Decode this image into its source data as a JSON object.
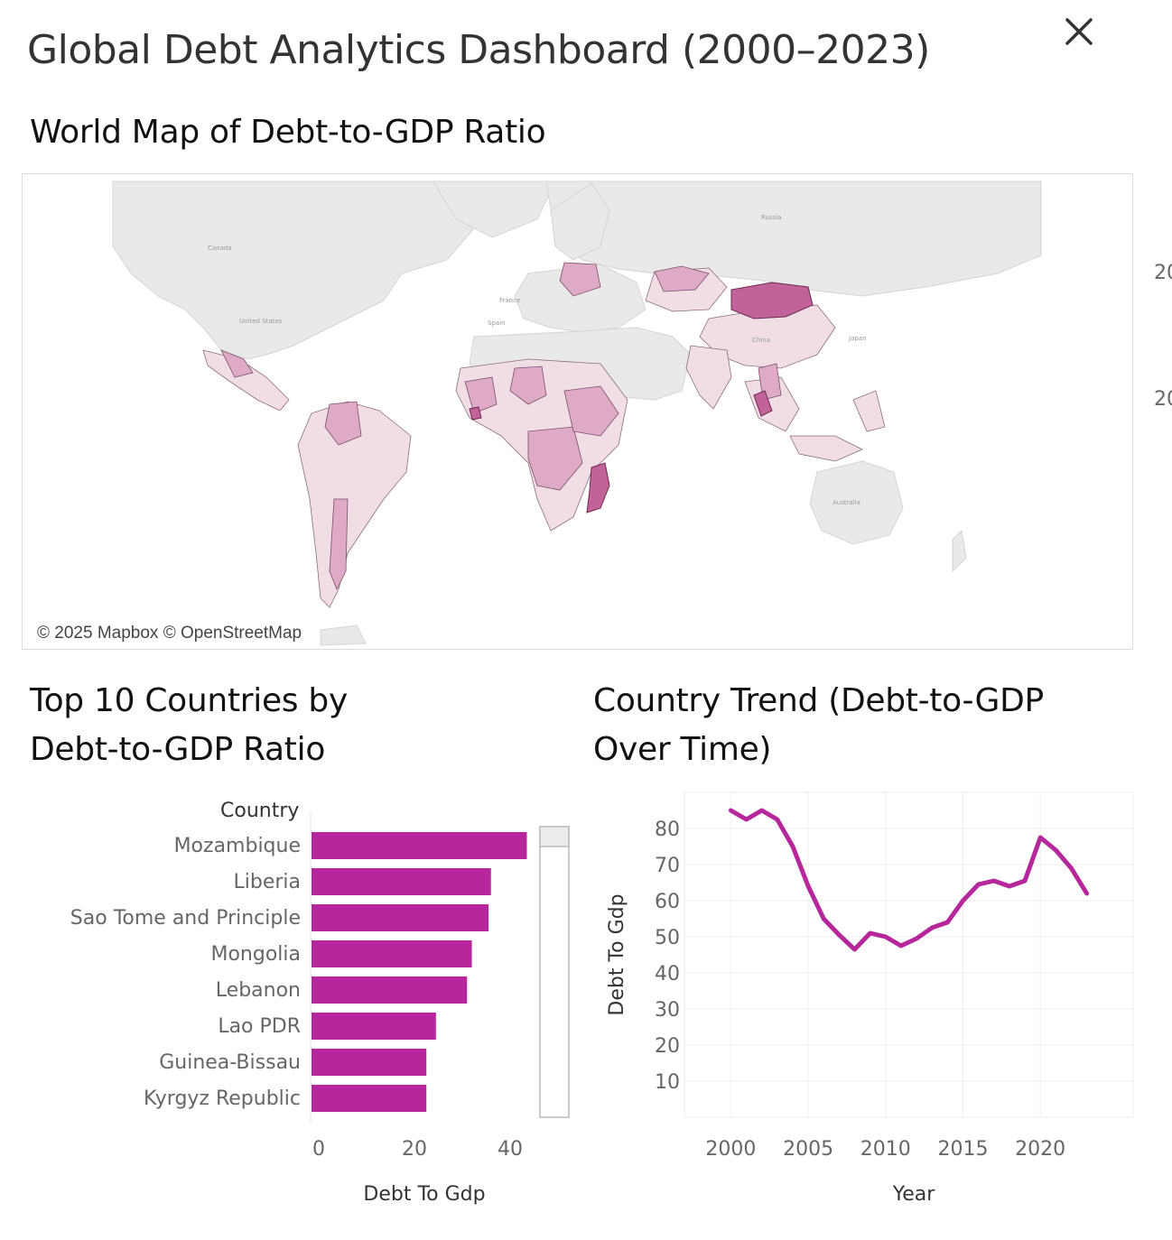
{
  "dashboard": {
    "title": "Global Debt Analytics Dashboard (2000–2023)",
    "close_icon": "close-icon"
  },
  "map": {
    "title": "World Map of Debt-to-GDP Ratio",
    "attribution": "© 2025 Mapbox © OpenStreetMap",
    "place_labels": [
      "Russia",
      "Canada",
      "United States",
      "France",
      "Spain",
      "China",
      "Japan",
      "Australia"
    ],
    "legend_partial": [
      "20",
      "20"
    ],
    "highlight_color": "#c2629a",
    "land_color": "#e8e8e8"
  },
  "bar_chart": {
    "title_line1": "Top 10 Countries by",
    "title_line2": "Debt-to-GDP Ratio",
    "column_header": "Country",
    "bar_color": "#b5279b"
  },
  "line_chart": {
    "title_line1": "Country Trend (Debt-to-GDP",
    "title_line2": "Over Time)",
    "line_color": "#b5279b"
  },
  "chart_data": [
    {
      "type": "bar",
      "orientation": "horizontal",
      "title": "Top 10 Countries by Debt-to-GDP Ratio",
      "ylabel": "Country",
      "xlabel": "Debt To Gdp",
      "categories": [
        "Mozambique",
        "Liberia",
        "Sao Tome and Principle",
        "Mongolia",
        "Lebanon",
        "Lao PDR",
        "Guinea-Bissau",
        "Kyrgyz Republic"
      ],
      "values": [
        45,
        37.5,
        37,
        33.5,
        32.5,
        26,
        24,
        24
      ],
      "xticks": [
        "0",
        "20",
        "40"
      ],
      "xlim": [
        0,
        55
      ]
    },
    {
      "type": "line",
      "title": "Country Trend (Debt-to-GDP Over Time)",
      "xlabel": "Year",
      "ylabel": "Debt To Gdp",
      "x": [
        2000,
        2001,
        2002,
        2003,
        2004,
        2005,
        2006,
        2007,
        2008,
        2009,
        2010,
        2011,
        2012,
        2013,
        2014,
        2015,
        2016,
        2017,
        2018,
        2019,
        2020,
        2021,
        2022,
        2023
      ],
      "values": [
        85,
        82.5,
        85,
        82.5,
        75,
        64,
        55,
        50.5,
        46.5,
        51,
        50,
        47.5,
        49.5,
        52.5,
        54,
        60,
        64.5,
        65.5,
        64,
        65.5,
        77.5,
        74,
        69,
        62
      ],
      "xticks": [
        "2000",
        "2005",
        "2010",
        "2015",
        "2020"
      ],
      "yticks": [
        "10",
        "20",
        "30",
        "40",
        "50",
        "60",
        "70",
        "80"
      ],
      "xlim": [
        1997,
        2026
      ],
      "ylim": [
        0,
        90
      ]
    }
  ]
}
